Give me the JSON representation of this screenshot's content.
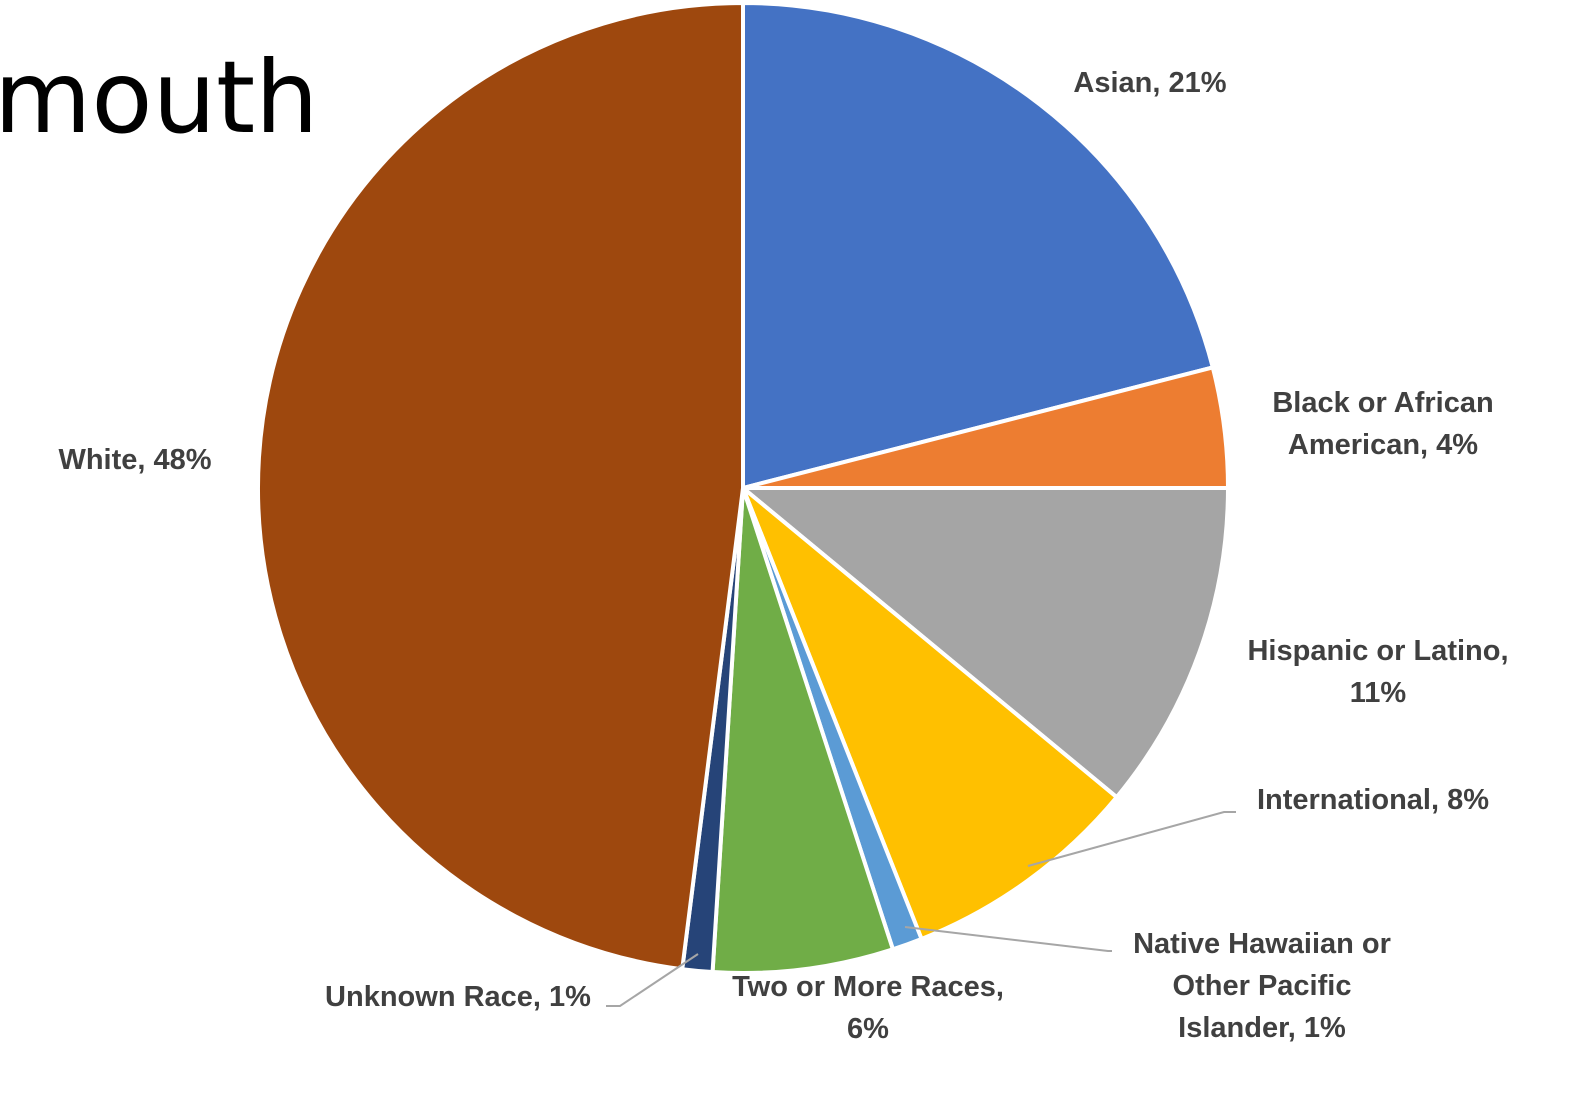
{
  "page": {
    "title": "mouth"
  },
  "chart_data": {
    "type": "pie",
    "title": "",
    "slices": [
      {
        "label": "Asian",
        "value": 21,
        "value_text": "21%",
        "display": [
          "Asian, 21%"
        ],
        "color": "#4472C4"
      },
      {
        "label": "Black or African American",
        "value": 4,
        "value_text": "4%",
        "display": [
          "Black or African",
          "American, 4%"
        ],
        "color": "#ED7D31"
      },
      {
        "label": "Hispanic or Latino",
        "value": 11,
        "value_text": "11%",
        "display": [
          "Hispanic or Latino,",
          "11%"
        ],
        "color": "#A5A5A5"
      },
      {
        "label": "International",
        "value": 8,
        "value_text": "8%",
        "display": [
          "International, 8%"
        ],
        "color": "#FFC000"
      },
      {
        "label": "Native Hawaiian or Other Pacific Islander",
        "value": 1,
        "value_text": "1%",
        "display": [
          "Native Hawaiian or",
          "Other Pacific",
          "Islander, 1%"
        ],
        "color": "#5B9BD5"
      },
      {
        "label": "Two or More Races",
        "value": 6,
        "value_text": "6%",
        "display": [
          "Two or More Races,",
          "6%"
        ],
        "color": "#70AD47"
      },
      {
        "label": "Unknown Race",
        "value": 1,
        "value_text": "1%",
        "display": [
          "Unknown Race, 1%"
        ],
        "color": "#264478"
      },
      {
        "label": "White",
        "value": 48,
        "value_text": "48%",
        "display": [
          "White, 48%"
        ],
        "color": "#9E480E"
      }
    ],
    "start_angle": "12 o'clock",
    "direction": "clockwise",
    "legend": "none",
    "label_style": "category, percentage"
  }
}
